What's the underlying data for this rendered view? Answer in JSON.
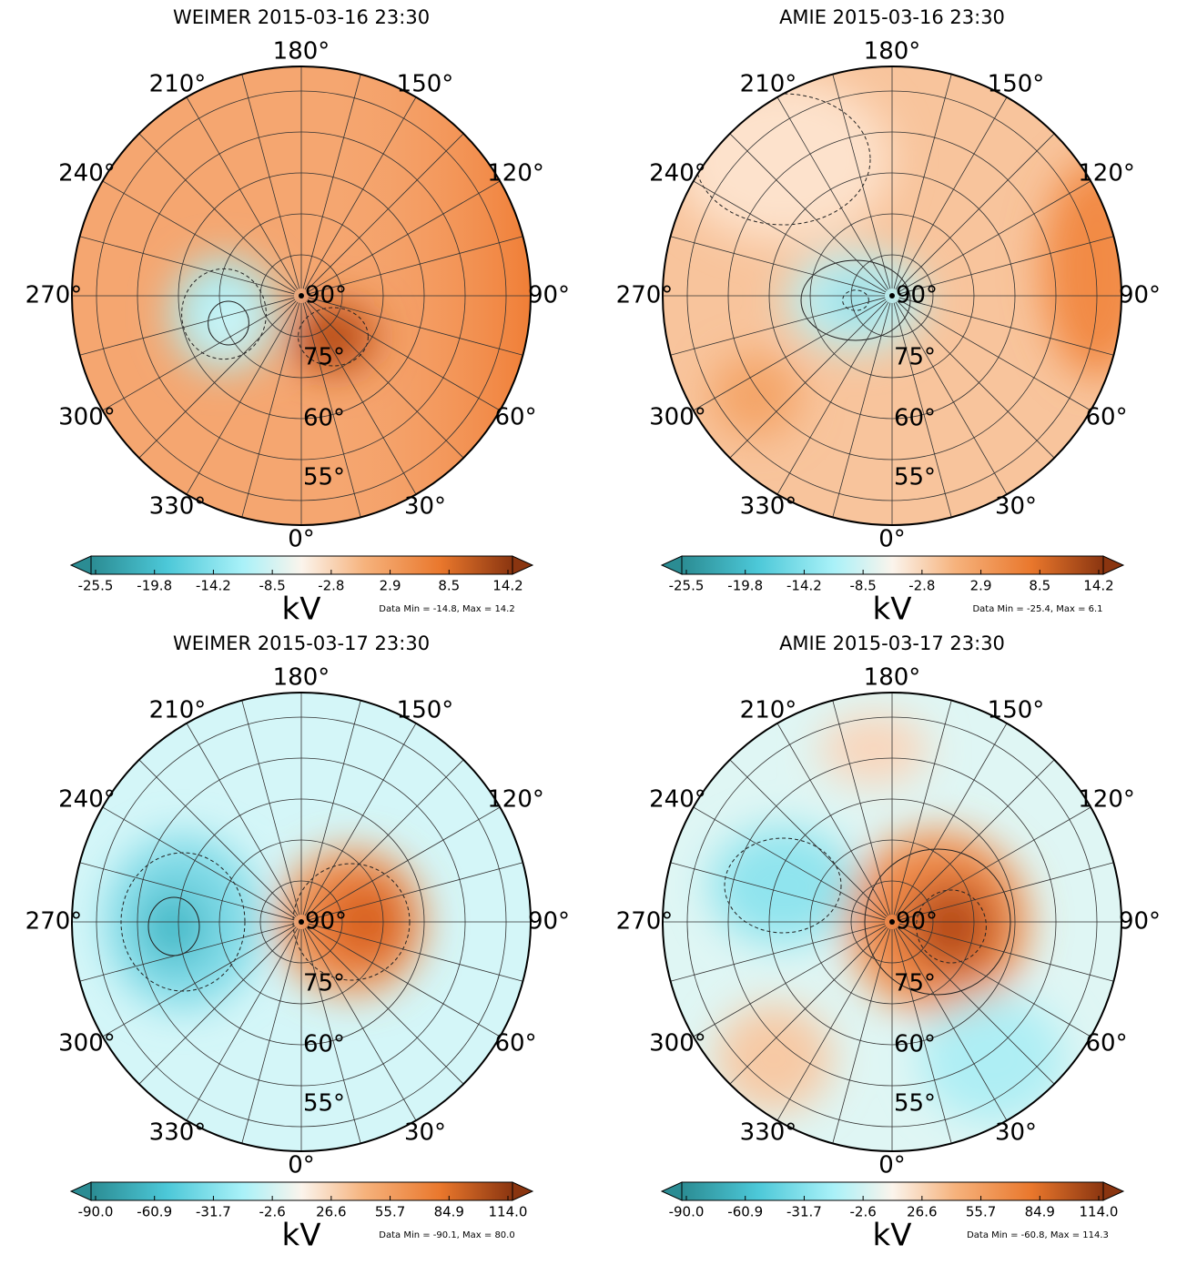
{
  "panels": [
    {
      "title": "WEIMER 2015-03-16 23:30",
      "longitude_labels": [
        "0°",
        "30°",
        "60°",
        "90°",
        "120°",
        "150°",
        "180°",
        "210°",
        "240°",
        "270°",
        "300°",
        "330°"
      ],
      "latitude_labels": [
        "90°",
        "75°",
        "60°",
        "55°"
      ],
      "colorbar": {
        "ticks": [
          "-25.5",
          "-19.8",
          "-14.2",
          "-8.5",
          "-2.8",
          "2.9",
          "8.5",
          "14.2"
        ],
        "unit": "kV",
        "note": "Data Min = -14.8, Max = 14.2"
      }
    },
    {
      "title": "AMIE 2015-03-16 23:30",
      "longitude_labels": [
        "0°",
        "30°",
        "60°",
        "90°",
        "120°",
        "150°",
        "180°",
        "210°",
        "240°",
        "270°",
        "300°",
        "330°"
      ],
      "latitude_labels": [
        "90°",
        "75°",
        "60°",
        "55°"
      ],
      "colorbar": {
        "ticks": [
          "-25.5",
          "-19.8",
          "-14.2",
          "-8.5",
          "-2.8",
          "2.9",
          "8.5",
          "14.2"
        ],
        "unit": "kV",
        "note": "Data Min = -25.4, Max = 6.1"
      }
    },
    {
      "title": "WEIMER 2015-03-17 23:30",
      "longitude_labels": [
        "0°",
        "30°",
        "60°",
        "90°",
        "120°",
        "150°",
        "180°",
        "210°",
        "240°",
        "270°",
        "300°",
        "330°"
      ],
      "latitude_labels": [
        "90°",
        "75°",
        "60°",
        "55°"
      ],
      "colorbar": {
        "ticks": [
          "-90.0",
          "-60.9",
          "-31.7",
          "-2.6",
          "26.6",
          "55.7",
          "84.9",
          "114.0"
        ],
        "unit": "kV",
        "note": "Data Min = -90.1, Max = 80.0"
      }
    },
    {
      "title": "AMIE 2015-03-17 23:30",
      "longitude_labels": [
        "0°",
        "30°",
        "60°",
        "90°",
        "120°",
        "150°",
        "180°",
        "210°",
        "240°",
        "270°",
        "300°",
        "330°"
      ],
      "latitude_labels": [
        "90°",
        "75°",
        "60°",
        "55°"
      ],
      "colorbar": {
        "ticks": [
          "-90.0",
          "-60.9",
          "-31.7",
          "-2.6",
          "26.6",
          "55.7",
          "84.9",
          "114.0"
        ],
        "unit": "kV",
        "note": "Data Min = -60.8, Max = 114.3"
      }
    }
  ]
}
